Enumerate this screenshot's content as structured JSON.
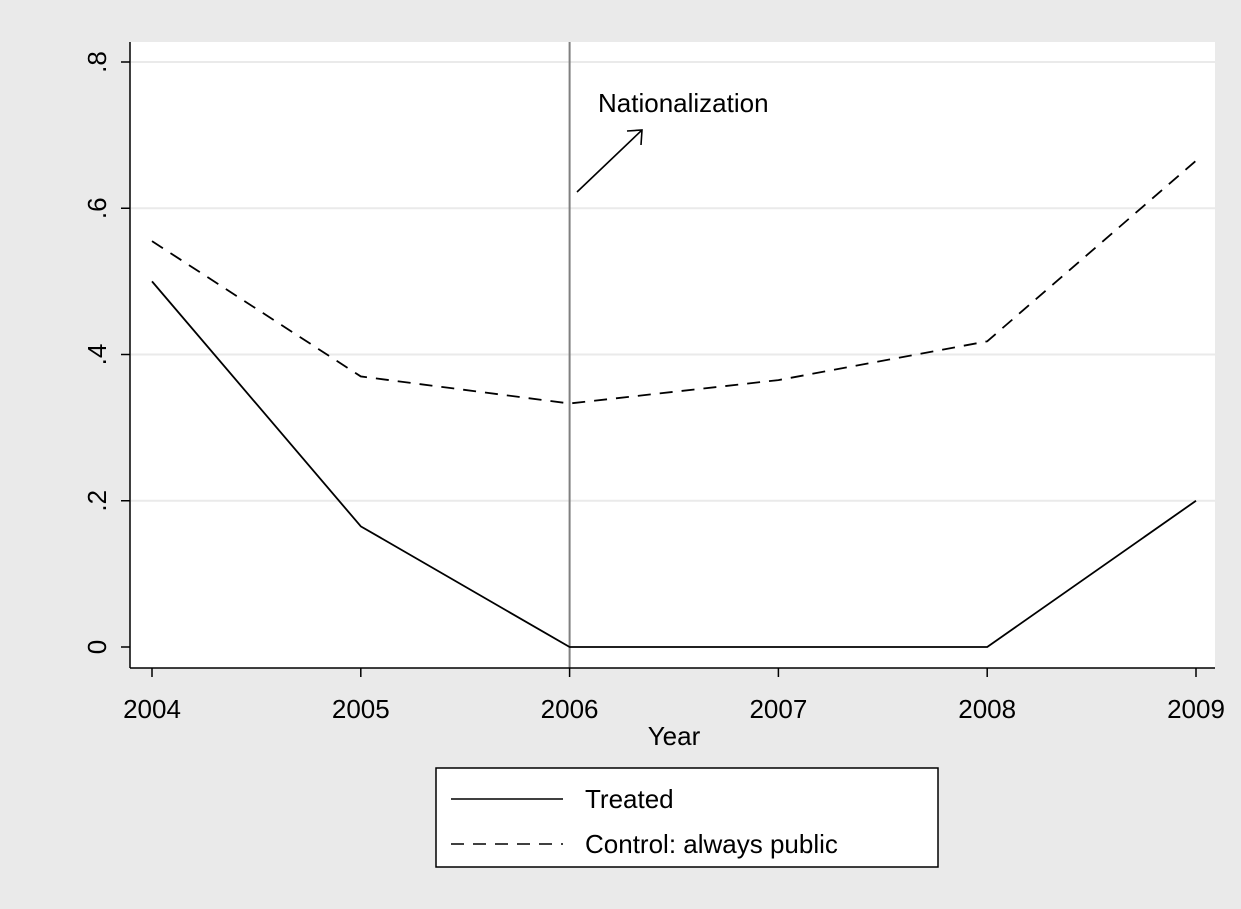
{
  "chart_data": {
    "type": "line",
    "xlabel": "Year",
    "ylabel": "",
    "x": [
      2004,
      2005,
      2006,
      2007,
      2008,
      2009
    ],
    "xlim": [
      2004,
      2009
    ],
    "ylim": [
      0,
      0.8
    ],
    "x_ticks": [
      "2004",
      "2005",
      "2006",
      "2007",
      "2008",
      "2009"
    ],
    "y_ticks": [
      {
        "value": 0,
        "label": "0"
      },
      {
        "value": 0.2,
        "label": ".2"
      },
      {
        "value": 0.4,
        "label": ".4"
      },
      {
        "value": 0.6,
        "label": ".6"
      },
      {
        "value": 0.8,
        "label": ".8"
      }
    ],
    "grid": "horizontal",
    "series": [
      {
        "name": "Treated",
        "style": "solid",
        "color": "#000000",
        "values": [
          0.5,
          0.165,
          0.0,
          0.0,
          0.0,
          0.2
        ]
      },
      {
        "name": "Control: always public",
        "style": "dashed",
        "color": "#000000",
        "values": [
          0.555,
          0.37,
          0.333,
          0.365,
          0.418,
          0.665
        ]
      }
    ],
    "annotations": {
      "vline_x": 2006,
      "vline_color": "#808080",
      "label": "Nationalization"
    },
    "legend": {
      "position": "bottom",
      "entries": [
        "Treated",
        "Control: always public"
      ]
    },
    "colors": {
      "outer_background": "#eaeaea",
      "plot_background": "#ffffff",
      "gridline": "#eaeaea",
      "axis": "#000000"
    }
  }
}
